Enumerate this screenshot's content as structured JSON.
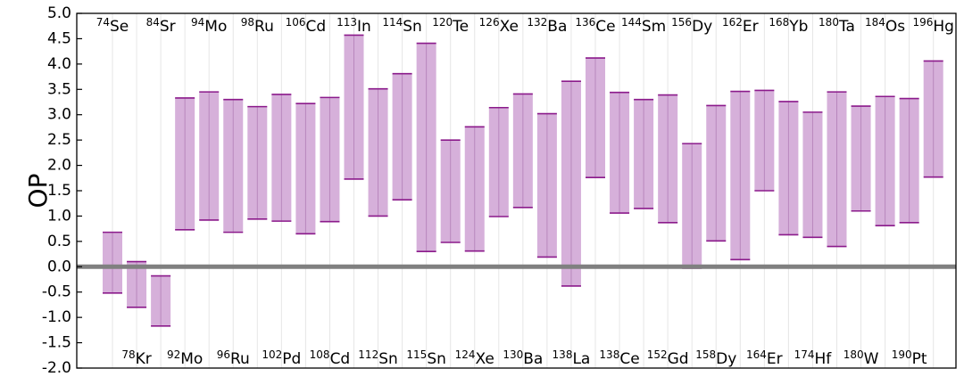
{
  "chart_data": {
    "type": "bar",
    "ylabel": "OP",
    "ylim": [
      -2.0,
      5.0
    ],
    "yticks": [
      "5.0",
      "4.5",
      "4.0",
      "3.5",
      "3.0",
      "2.5",
      "2.0",
      "1.5",
      "1.0",
      "0.5",
      "0.0",
      "-0.5",
      "-1.0",
      "-1.5",
      "-2.0"
    ],
    "zero_line": true,
    "grid": "vertical",
    "colors": {
      "fill": "#d6b0da",
      "edge": "#8b1a8b",
      "zero": "#808080"
    },
    "bars": [
      {
        "mass": "74",
        "element": "Se",
        "low": -0.52,
        "high": 0.68,
        "label_pos": "top"
      },
      {
        "mass": "78",
        "element": "Kr",
        "low": -0.8,
        "high": 0.1,
        "label_pos": "bottom"
      },
      {
        "mass": "84",
        "element": "Sr",
        "low": -1.17,
        "high": -0.18,
        "label_pos": "top"
      },
      {
        "mass": "92",
        "element": "Mo",
        "low": 0.73,
        "high": 3.33,
        "label_pos": "bottom"
      },
      {
        "mass": "94",
        "element": "Mo",
        "low": 0.92,
        "high": 3.45,
        "label_pos": "top"
      },
      {
        "mass": "96",
        "element": "Ru",
        "low": 0.68,
        "high": 3.3,
        "label_pos": "bottom"
      },
      {
        "mass": "98",
        "element": "Ru",
        "low": 0.94,
        "high": 3.16,
        "label_pos": "top"
      },
      {
        "mass": "102",
        "element": "Pd",
        "low": 0.9,
        "high": 3.4,
        "label_pos": "bottom"
      },
      {
        "mass": "106",
        "element": "Cd",
        "low": 0.65,
        "high": 3.22,
        "label_pos": "top"
      },
      {
        "mass": "108",
        "element": "Cd",
        "low": 0.89,
        "high": 3.34,
        "label_pos": "bottom"
      },
      {
        "mass": "113",
        "element": "In",
        "low": 1.73,
        "high": 4.57,
        "label_pos": "top"
      },
      {
        "mass": "112",
        "element": "Sn",
        "low": 1.0,
        "high": 3.51,
        "label_pos": "bottom"
      },
      {
        "mass": "114",
        "element": "Sn",
        "low": 1.32,
        "high": 3.81,
        "label_pos": "top"
      },
      {
        "mass": "115",
        "element": "Sn",
        "low": 0.3,
        "high": 4.41,
        "label_pos": "bottom"
      },
      {
        "mass": "120",
        "element": "Te",
        "low": 0.48,
        "high": 2.5,
        "label_pos": "top"
      },
      {
        "mass": "124",
        "element": "Xe",
        "low": 0.31,
        "high": 2.76,
        "label_pos": "bottom"
      },
      {
        "mass": "126",
        "element": "Xe",
        "low": 0.99,
        "high": 3.14,
        "label_pos": "top"
      },
      {
        "mass": "130",
        "element": "Ba",
        "low": 1.17,
        "high": 3.41,
        "label_pos": "bottom"
      },
      {
        "mass": "132",
        "element": "Ba",
        "low": 0.19,
        "high": 3.02,
        "label_pos": "top"
      },
      {
        "mass": "138",
        "element": "La",
        "low": -0.38,
        "high": 3.66,
        "label_pos": "bottom"
      },
      {
        "mass": "136",
        "element": "Ce",
        "low": 1.76,
        "high": 4.12,
        "label_pos": "top"
      },
      {
        "mass": "138",
        "element": "Ce",
        "low": 1.06,
        "high": 3.44,
        "label_pos": "bottom"
      },
      {
        "mass": "144",
        "element": "Sm",
        "low": 1.15,
        "high": 3.3,
        "label_pos": "top"
      },
      {
        "mass": "152",
        "element": "Gd",
        "low": 0.87,
        "high": 3.39,
        "label_pos": "bottom"
      },
      {
        "mass": "156",
        "element": "Dy",
        "low": -0.03,
        "high": 2.43,
        "label_pos": "top"
      },
      {
        "mass": "158",
        "element": "Dy",
        "low": 0.51,
        "high": 3.18,
        "label_pos": "bottom"
      },
      {
        "mass": "162",
        "element": "Er",
        "low": 0.14,
        "high": 3.46,
        "label_pos": "top"
      },
      {
        "mass": "164",
        "element": "Er",
        "low": 1.5,
        "high": 3.48,
        "label_pos": "bottom"
      },
      {
        "mass": "168",
        "element": "Yb",
        "low": 0.63,
        "high": 3.26,
        "label_pos": "top"
      },
      {
        "mass": "174",
        "element": "Hf",
        "low": 0.58,
        "high": 3.05,
        "label_pos": "bottom"
      },
      {
        "mass": "180",
        "element": "Ta",
        "low": 0.4,
        "high": 3.45,
        "label_pos": "top"
      },
      {
        "mass": "180",
        "element": "W",
        "low": 1.1,
        "high": 3.17,
        "label_pos": "bottom"
      },
      {
        "mass": "184",
        "element": "Os",
        "low": 0.81,
        "high": 3.36,
        "label_pos": "top"
      },
      {
        "mass": "190",
        "element": "Pt",
        "low": 0.87,
        "high": 3.32,
        "label_pos": "bottom"
      },
      {
        "mass": "196",
        "element": "Hg",
        "low": 1.77,
        "high": 4.06,
        "label_pos": "top"
      }
    ]
  }
}
